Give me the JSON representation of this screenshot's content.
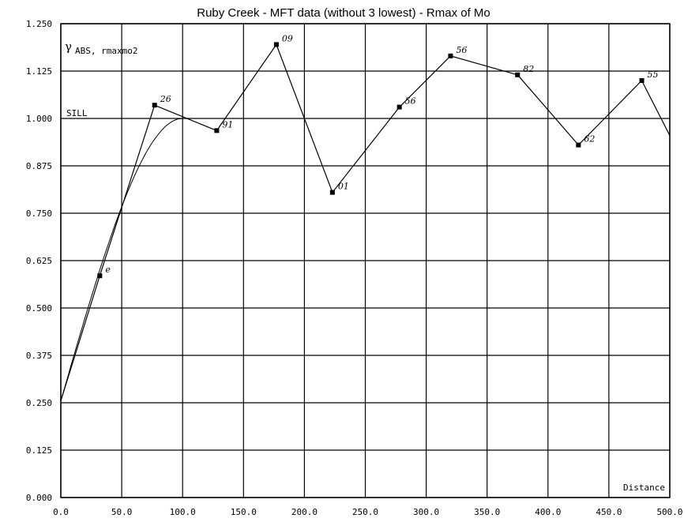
{
  "chart_data": {
    "type": "line",
    "title": "Ruby Creek -  MFT data (without 3 lowest) - Rmax of Mo",
    "ylabel_main": "γ",
    "ylabel_sub": "ABS, rmaxmo2",
    "xlabel": "Distance",
    "sill_label": "SILL",
    "xlim": [
      0,
      500
    ],
    "ylim": [
      0,
      1.25
    ],
    "grid": true,
    "x_ticks": [
      "0.0",
      "50.0",
      "100.0",
      "150.0",
      "200.0",
      "250.0",
      "300.0",
      "350.0",
      "400.0",
      "450.0",
      "500.0"
    ],
    "y_ticks": [
      "0.000",
      "0.125",
      "0.250",
      "0.375",
      "0.500",
      "0.625",
      "0.750",
      "0.875",
      "1.000",
      "1.125",
      "1.250"
    ],
    "experimental": [
      {
        "x": 32,
        "y": 0.585,
        "label": "e"
      },
      {
        "x": 77,
        "y": 1.035,
        "label": "26"
      },
      {
        "x": 128,
        "y": 0.968,
        "label": "91"
      },
      {
        "x": 177,
        "y": 1.195,
        "label": "09"
      },
      {
        "x": 223,
        "y": 0.805,
        "label": "01"
      },
      {
        "x": 278,
        "y": 1.03,
        "label": "56"
      },
      {
        "x": 320,
        "y": 1.165,
        "label": "56"
      },
      {
        "x": 375,
        "y": 1.115,
        "label": "82"
      },
      {
        "x": 425,
        "y": 0.93,
        "label": "62"
      },
      {
        "x": 477,
        "y": 1.1,
        "label": "55"
      }
    ],
    "experimental_end": {
      "x": 500,
      "y": 0.955
    },
    "model": {
      "nugget": 0.255,
      "sill": 1.0,
      "range": 100,
      "kind": "spherical"
    }
  }
}
